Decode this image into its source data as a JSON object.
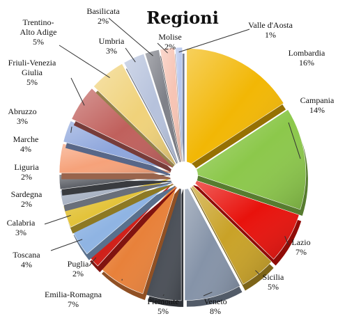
{
  "chart_data": {
    "type": "pie",
    "title": "Regioni",
    "slices": [
      {
        "label": "Lombardia",
        "value": 16,
        "display": "16%",
        "color": "#F2B705"
      },
      {
        "label": "Campania",
        "value": 14,
        "display": "14%",
        "color": "#8CC84B"
      },
      {
        "label": "Lazio",
        "value": 7,
        "display": "7%",
        "color": "#E8120C"
      },
      {
        "label": "Sicilia",
        "value": 5,
        "display": "5%",
        "color": "#C9A227"
      },
      {
        "label": "Veneto",
        "value": 8,
        "display": "8%",
        "color": "#8593A8"
      },
      {
        "label": "Piemonte",
        "value": 5,
        "display": "5%",
        "color": "#4A4F57"
      },
      {
        "label": "Emilia-Romagna",
        "value": 7,
        "display": "7%",
        "color": "#E8813A"
      },
      {
        "label": "Puglia",
        "value": 2,
        "display": "2%",
        "color": "#D0201A"
      },
      {
        "label": "Toscana",
        "value": 4,
        "display": "4%",
        "color": "#8FB4E3"
      },
      {
        "label": "Calabria",
        "value": 3,
        "display": "3%",
        "color": "#E3C33A"
      },
      {
        "label": "Sardegna",
        "value": 2,
        "display": "2%",
        "color": "#A9B3C4"
      },
      {
        "label": "Liguria",
        "value": 2,
        "display": "2%",
        "color": "#5C5F66"
      },
      {
        "label": "Marche",
        "value": 4,
        "display": "4%",
        "color": "#F6A27A"
      },
      {
        "label": "Abruzzo",
        "value": 3,
        "display": "3%",
        "color": "#8EA6DC"
      },
      {
        "label": "Friuli-Venezia Giulia",
        "value": 5,
        "display": "5%",
        "color": "#C0605C"
      },
      {
        "label": "Trentino-Alto Adige",
        "value": 5,
        "display": "5%",
        "color": "#F0D27A"
      },
      {
        "label": "Umbria",
        "value": 3,
        "display": "3%",
        "color": "#B6C2DC"
      },
      {
        "label": "Basilicata",
        "value": 2,
        "display": "2%",
        "color": "#7E8088"
      },
      {
        "label": "Molise",
        "value": 2,
        "display": "2%",
        "color": "#F7C4B4"
      },
      {
        "label": "Valle d'Aosta",
        "value": 1,
        "display": "1%",
        "color": "#B8C8EE"
      }
    ]
  }
}
